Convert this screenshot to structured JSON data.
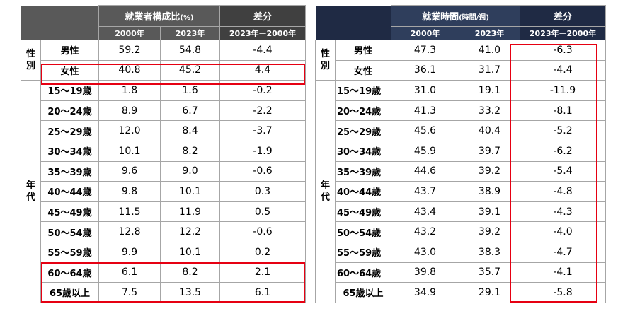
{
  "left_table": {
    "header": {
      "metric_title": "就業者構成比",
      "metric_unit": "(%)",
      "diff_title": "差分",
      "col_2000": "2000年",
      "col_2023": "2023年",
      "col_diff": "2023年ー2000年"
    },
    "groups": {
      "sex": [
        "性",
        "別"
      ],
      "age": [
        "年",
        "代"
      ]
    },
    "rows": [
      {
        "label": "男性",
        "v2000": "59.2",
        "v2023": "54.8",
        "diff": "-4.4"
      },
      {
        "label": "女性",
        "v2000": "40.8",
        "v2023": "45.2",
        "diff": "4.4"
      },
      {
        "label": "15～19歳",
        "v2000": "1.8",
        "v2023": "1.6",
        "diff": "-0.2"
      },
      {
        "label": "20～24歳",
        "v2000": "8.9",
        "v2023": "6.7",
        "diff": "-2.2"
      },
      {
        "label": "25～29歳",
        "v2000": "12.0",
        "v2023": "8.4",
        "diff": "-3.7"
      },
      {
        "label": "30～34歳",
        "v2000": "10.1",
        "v2023": "8.2",
        "diff": "-1.9"
      },
      {
        "label": "35～39歳",
        "v2000": "9.6",
        "v2023": "9.0",
        "diff": "-0.6"
      },
      {
        "label": "40～44歳",
        "v2000": "9.8",
        "v2023": "10.1",
        "diff": "0.3"
      },
      {
        "label": "45～49歳",
        "v2000": "11.5",
        "v2023": "11.9",
        "diff": "0.5"
      },
      {
        "label": "50～54歳",
        "v2000": "12.8",
        "v2023": "12.2",
        "diff": "-0.6"
      },
      {
        "label": "55～59歳",
        "v2000": "9.9",
        "v2023": "10.1",
        "diff": "0.2"
      },
      {
        "label": "60～64歳",
        "v2000": "6.1",
        "v2023": "8.2",
        "diff": "2.1"
      },
      {
        "label": "65歳以上",
        "v2000": "7.5",
        "v2023": "13.5",
        "diff": "6.1"
      }
    ]
  },
  "right_table": {
    "header": {
      "metric_title": "就業時間",
      "metric_unit": "(時間/週)",
      "diff_title": "差分",
      "col_2000": "2000年",
      "col_2023": "2023年",
      "col_diff": "2023年ー2000年"
    },
    "groups": {
      "sex": [
        "性",
        "別"
      ],
      "age": [
        "年",
        "代"
      ]
    },
    "rows": [
      {
        "label": "男性",
        "v2000": "47.3",
        "v2023": "41.0",
        "diff": "-6.3"
      },
      {
        "label": "女性",
        "v2000": "36.1",
        "v2023": "31.7",
        "diff": "-4.4"
      },
      {
        "label": "15～19歳",
        "v2000": "31.0",
        "v2023": "19.1",
        "diff": "-11.9"
      },
      {
        "label": "20～24歳",
        "v2000": "41.3",
        "v2023": "33.2",
        "diff": "-8.1"
      },
      {
        "label": "25～29歳",
        "v2000": "45.6",
        "v2023": "40.4",
        "diff": "-5.2"
      },
      {
        "label": "30～34歳",
        "v2000": "45.9",
        "v2023": "39.7",
        "diff": "-6.2"
      },
      {
        "label": "35～39歳",
        "v2000": "44.6",
        "v2023": "39.2",
        "diff": "-5.4"
      },
      {
        "label": "40～44歳",
        "v2000": "43.7",
        "v2023": "38.9",
        "diff": "-4.8"
      },
      {
        "label": "45～49歳",
        "v2000": "43.4",
        "v2023": "39.1",
        "diff": "-4.3"
      },
      {
        "label": "50～54歳",
        "v2000": "43.2",
        "v2023": "39.2",
        "diff": "-4.0"
      },
      {
        "label": "55～59歳",
        "v2000": "43.0",
        "v2023": "38.3",
        "diff": "-4.7"
      },
      {
        "label": "60～64歳",
        "v2000": "39.8",
        "v2023": "35.7",
        "diff": "-4.1"
      },
      {
        "label": "65歳以上",
        "v2000": "34.9",
        "v2023": "29.1",
        "diff": "-5.8"
      }
    ]
  },
  "highlight_color": "#e60012"
}
